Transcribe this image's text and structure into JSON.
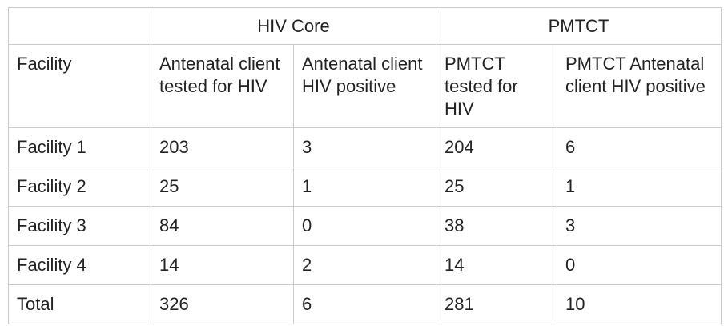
{
  "table": {
    "group_headers": [
      "",
      "HIV Core",
      "PMTCT"
    ],
    "column_headers": [
      "Facility",
      "Antenatal client tested for HIV",
      "Antenatal client HIV positive",
      "PMTCT tested for HIV",
      "PMTCT Antenatal client HIV positive"
    ],
    "rows": [
      [
        "Facility 1",
        "203",
        "3",
        "204",
        "6"
      ],
      [
        "Facility 2",
        "25",
        "1",
        "25",
        "1"
      ],
      [
        "Facility 3",
        "84",
        "0",
        "38",
        "3"
      ],
      [
        "Facility 4",
        "14",
        "2",
        "14",
        "0"
      ],
      [
        "Total",
        "326",
        "6",
        "281",
        "10"
      ]
    ]
  }
}
